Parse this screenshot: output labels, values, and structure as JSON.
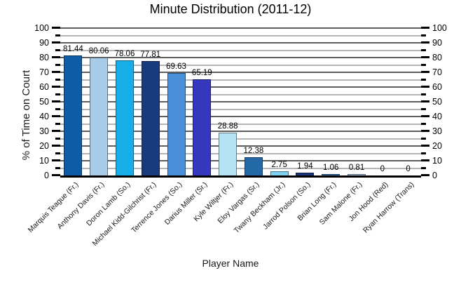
{
  "title": "Minute Distribution (2011-12)",
  "chart_data": {
    "type": "bar",
    "title": "Minute Distribution (2011-12)",
    "xlabel": "Player Name",
    "ylabel": "% of Time on Court",
    "ylim": [
      0,
      100
    ],
    "y_major_step": 10,
    "y_minor_step": 5,
    "grid": true,
    "dual_y_axis_labels": true,
    "legend": "none",
    "y_tick_labels": [
      "0",
      "10",
      "20",
      "30",
      "40",
      "50",
      "60",
      "70",
      "80",
      "90",
      "100"
    ],
    "categories": [
      "Marquis Teague (Fr.)",
      "Anthony Davis (Fr.)",
      "Doron Lamb (So.)",
      "Michael Kidd-Gilchrist (Fr.)",
      "Terrence Jones (So.)",
      "Darius Miller (Sr.)",
      "Kyle Wiltjer (Fr.)",
      "Eloy Vargas (Sr.)",
      "Twany Beckham (Jr.)",
      "Jarrod Polson (So.)",
      "Brian Long (Fr.)",
      "Sam Malone (Fr.)",
      "Jon Hood (Red)",
      "Ryan Harrow (Trans)"
    ],
    "values": [
      81.44,
      80.06,
      78.06,
      77.81,
      69.63,
      65.19,
      28.88,
      12.38,
      2.75,
      1.94,
      1.06,
      0.81,
      0,
      0
    ],
    "value_labels": [
      "81.44",
      "80.06",
      "78.06",
      "77.81",
      "69.63",
      "65.19",
      "28.88",
      "12.38",
      "2.75",
      "1.94",
      "1.06",
      "0.81",
      "0",
      "0"
    ],
    "bar_colors": [
      "#0d5ca8",
      "#a8cbe8",
      "#16aee8",
      "#1a3a7e",
      "#4a90d8",
      "#3538bf",
      "#b5e2f4",
      "#2369a8",
      "#7fd2f0",
      "#1a357c",
      "#2e6da4",
      "#a2b7d4",
      "#0d5ca8",
      "#a8cbe8"
    ],
    "colors": {
      "grid_major": "#5f5f5f",
      "grid_minor": "#b5b5b5",
      "axis": "#000000",
      "background": "#ffffff"
    }
  }
}
